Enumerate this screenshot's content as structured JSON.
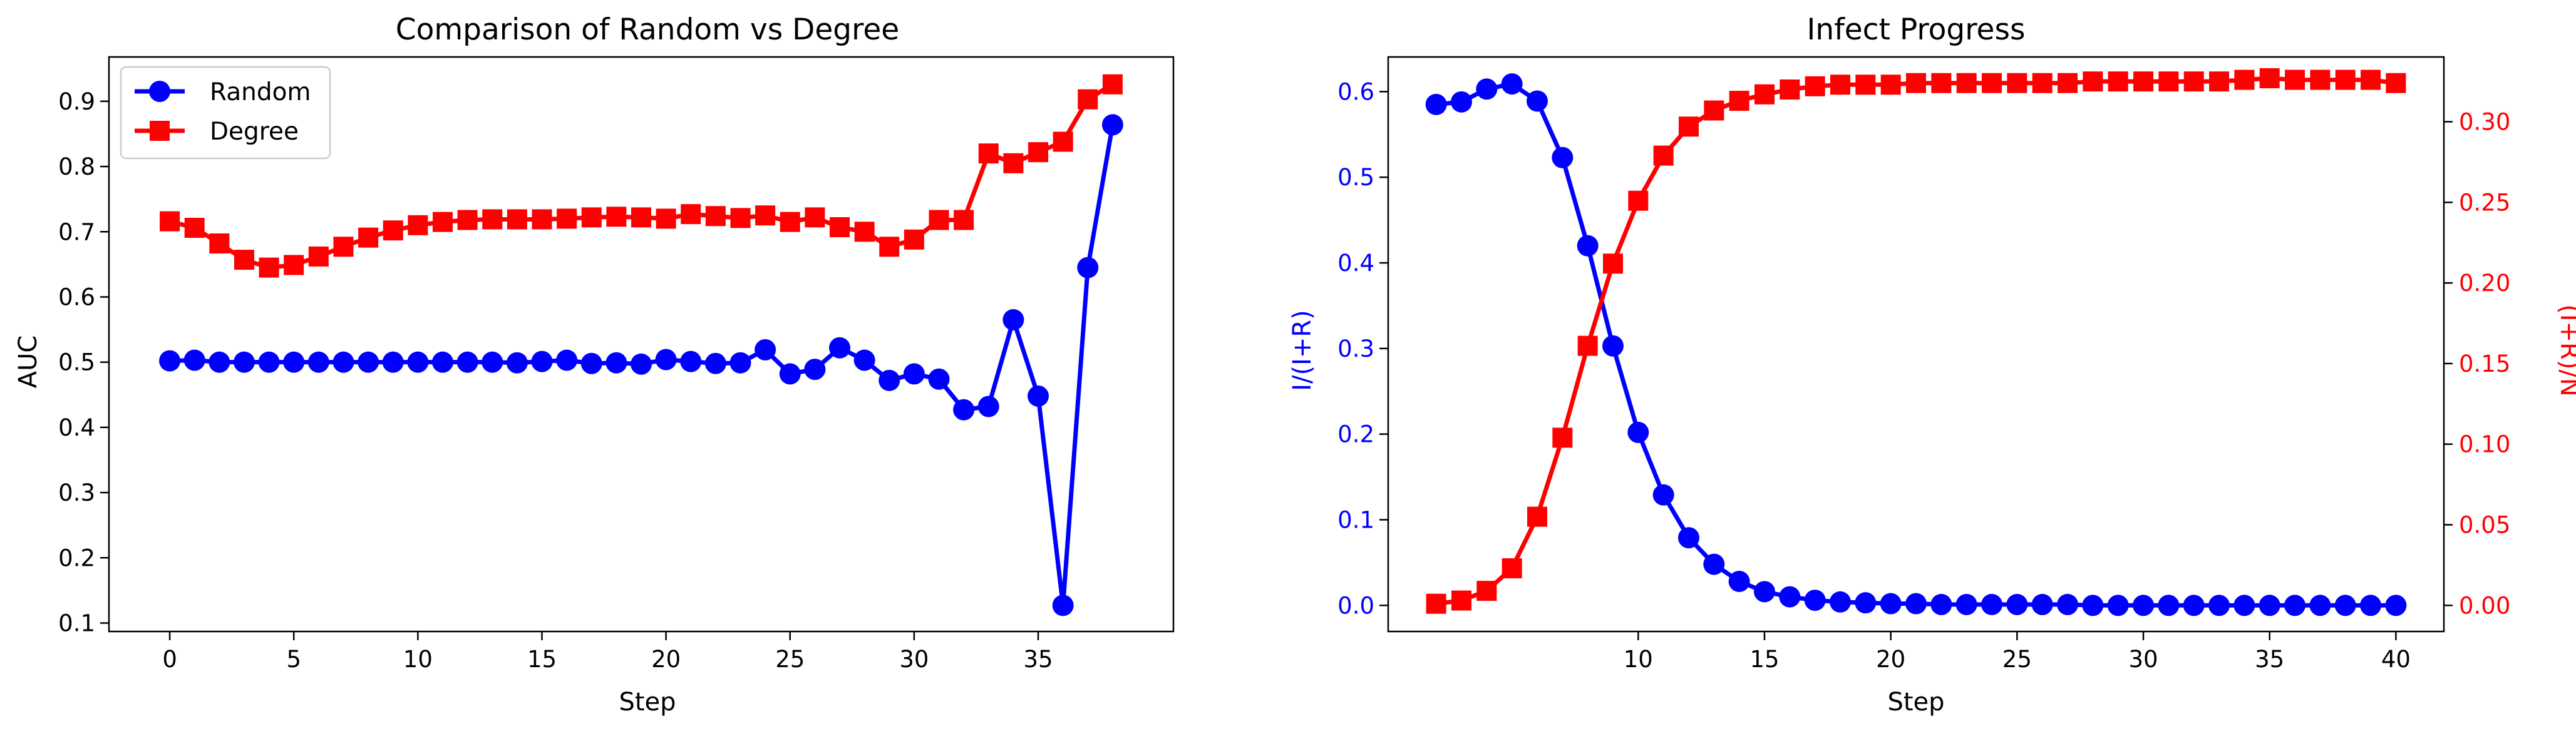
{
  "chart_data": [
    {
      "type": "line",
      "title": "Comparison of Random vs Degree",
      "xlabel": "Step",
      "ylabel": "AUC",
      "xlim": [
        -2.45,
        40.45
      ],
      "ylim": [
        0.087,
        0.968
      ],
      "xticks": [
        0,
        5,
        10,
        15,
        20,
        25,
        30,
        35
      ],
      "yticks": [
        0.1,
        0.2,
        0.3,
        0.4,
        0.5,
        0.6,
        0.7,
        0.8,
        0.9
      ],
      "grid": false,
      "legend": "upper-left",
      "x": [
        0,
        1,
        2,
        3,
        4,
        5,
        6,
        7,
        8,
        9,
        10,
        11,
        12,
        13,
        14,
        15,
        16,
        17,
        18,
        19,
        20,
        21,
        22,
        23,
        24,
        25,
        26,
        27,
        28,
        29,
        30,
        31,
        32,
        33,
        34,
        35,
        36,
        37,
        38
      ],
      "series": [
        {
          "name": "Random",
          "color": "#0000ff",
          "marker": "circle",
          "values": [
            0.502,
            0.503,
            0.5,
            0.5,
            0.5,
            0.5,
            0.5,
            0.5,
            0.5,
            0.5,
            0.5,
            0.5,
            0.5,
            0.5,
            0.499,
            0.501,
            0.503,
            0.498,
            0.499,
            0.497,
            0.504,
            0.501,
            0.498,
            0.499,
            0.519,
            0.482,
            0.489,
            0.522,
            0.503,
            0.472,
            0.482,
            0.474,
            0.427,
            0.432,
            0.565,
            0.448,
            0.127,
            0.645,
            0.864
          ]
        },
        {
          "name": "Degree",
          "color": "#ff0000",
          "marker": "square",
          "values": [
            0.716,
            0.706,
            0.682,
            0.657,
            0.645,
            0.649,
            0.662,
            0.677,
            0.691,
            0.702,
            0.71,
            0.715,
            0.718,
            0.719,
            0.719,
            0.719,
            0.72,
            0.722,
            0.723,
            0.722,
            0.72,
            0.727,
            0.724,
            0.721,
            0.725,
            0.715,
            0.722,
            0.707,
            0.7,
            0.677,
            0.688,
            0.718,
            0.718,
            0.82,
            0.805,
            0.822,
            0.838,
            0.903,
            0.926
          ]
        }
      ]
    },
    {
      "type": "line",
      "title": "Infect Progress",
      "xlabel": "Step",
      "ylabel": "I/(I+R)",
      "ylabel_right": "(I+R)/N",
      "ylabel_color": "#0000ff",
      "ylabel_right_color": "#ff0000",
      "xlim": [
        0.1,
        41.9
      ],
      "ylim": [
        -0.0305,
        0.6405
      ],
      "ylim_right": [
        -0.0162,
        0.3402
      ],
      "xticks": [
        10,
        15,
        20,
        25,
        30,
        35,
        40
      ],
      "yticks": [
        0.0,
        0.1,
        0.2,
        0.3,
        0.4,
        0.5,
        0.6
      ],
      "yticks_right": [
        0.0,
        0.05,
        0.1,
        0.15,
        0.2,
        0.25,
        0.3
      ],
      "grid": false,
      "x": [
        2,
        3,
        4,
        5,
        6,
        7,
        8,
        9,
        10,
        11,
        12,
        13,
        14,
        15,
        16,
        17,
        18,
        19,
        20,
        21,
        22,
        23,
        24,
        25,
        26,
        27,
        28,
        29,
        30,
        31,
        32,
        33,
        34,
        35,
        36,
        37,
        38,
        39,
        40
      ],
      "series": [
        {
          "axis": "left",
          "color": "#0000ff",
          "marker": "circle",
          "values": [
            0.585,
            0.588,
            0.603,
            0.609,
            0.589,
            0.523,
            0.42,
            0.303,
            0.202,
            0.129,
            0.079,
            0.048,
            0.028,
            0.016,
            0.01,
            0.006,
            0.004,
            0.003,
            0.002,
            0.002,
            0.001,
            0.001,
            0.001,
            0.001,
            0.001,
            0.001,
            0.0,
            0.0,
            0.0,
            0.0,
            0.0,
            0.0,
            0.0,
            0.0,
            0.0,
            0.0,
            0.0,
            0.0,
            0.0
          ]
        },
        {
          "axis": "right",
          "color": "#ff0000",
          "marker": "square",
          "values": [
            0.001,
            0.003,
            0.009,
            0.023,
            0.055,
            0.104,
            0.161,
            0.212,
            0.251,
            0.279,
            0.297,
            0.307,
            0.313,
            0.317,
            0.32,
            0.322,
            0.323,
            0.323,
            0.323,
            0.324,
            0.324,
            0.324,
            0.324,
            0.324,
            0.324,
            0.324,
            0.325,
            0.325,
            0.325,
            0.325,
            0.325,
            0.325,
            0.326,
            0.327,
            0.326,
            0.326,
            0.326,
            0.326,
            0.324
          ]
        }
      ]
    }
  ]
}
